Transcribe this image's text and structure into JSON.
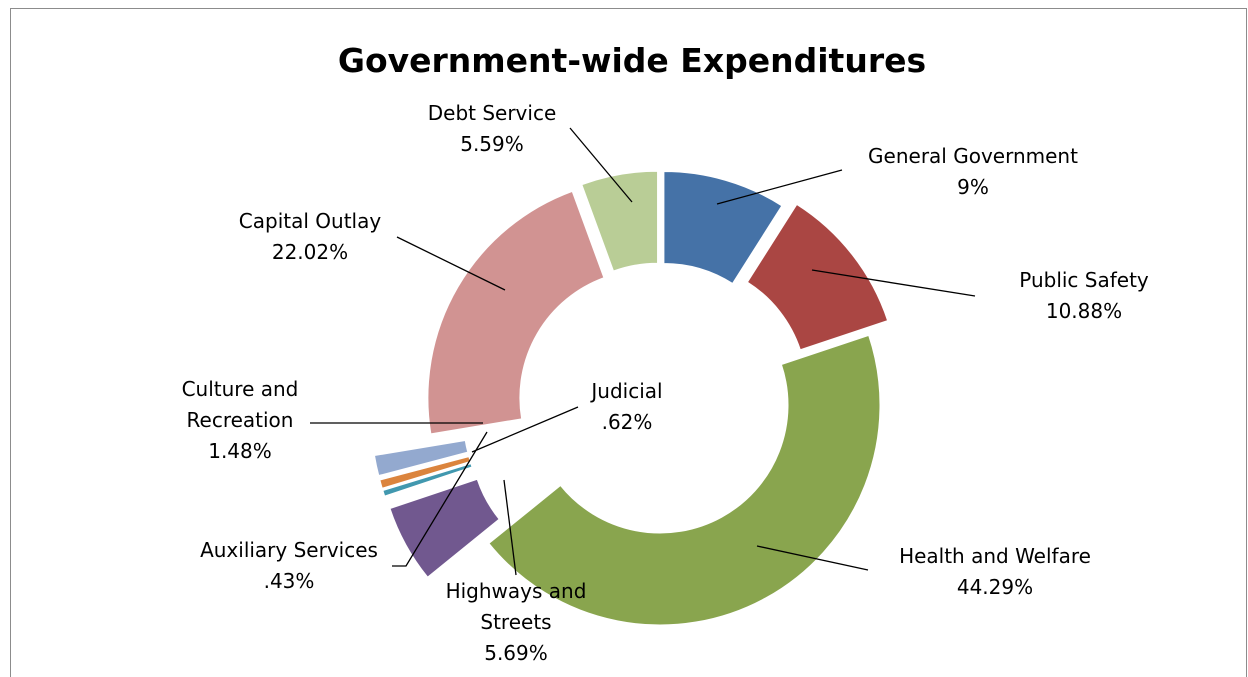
{
  "chart_data": {
    "type": "pie",
    "title": "Government-wide Expenditures",
    "slices": [
      {
        "label": "General Government",
        "display": "9%",
        "value": 9.0,
        "color": "#4572a7"
      },
      {
        "label": "Public Safety",
        "display": "10.88%",
        "value": 10.88,
        "color": "#aa4643"
      },
      {
        "label": "Health and Welfare",
        "display": "44.29%",
        "value": 44.29,
        "color": "#89a54e"
      },
      {
        "label": "Highways and Streets",
        "display": "5.69%",
        "value": 5.69,
        "color": "#71588f"
      },
      {
        "label": "Auxiliary Services",
        "display": ".43%",
        "value": 0.43,
        "color": "#4198af"
      },
      {
        "label": "Judicial",
        "display": ".62%",
        "value": 0.62,
        "color": "#db843d"
      },
      {
        "label": "Culture and Recreation",
        "display": "1.48%",
        "value": 1.48,
        "color": "#93a9cf"
      },
      {
        "label": "Capital Outlay",
        "display": "22.02%",
        "value": 22.02,
        "color": "#d19392"
      },
      {
        "label": "Debt Service",
        "display": "5.59%",
        "value": 5.59,
        "color": "#b9cd96"
      }
    ],
    "legend": "none",
    "label_style": "callouts with leader lines"
  }
}
